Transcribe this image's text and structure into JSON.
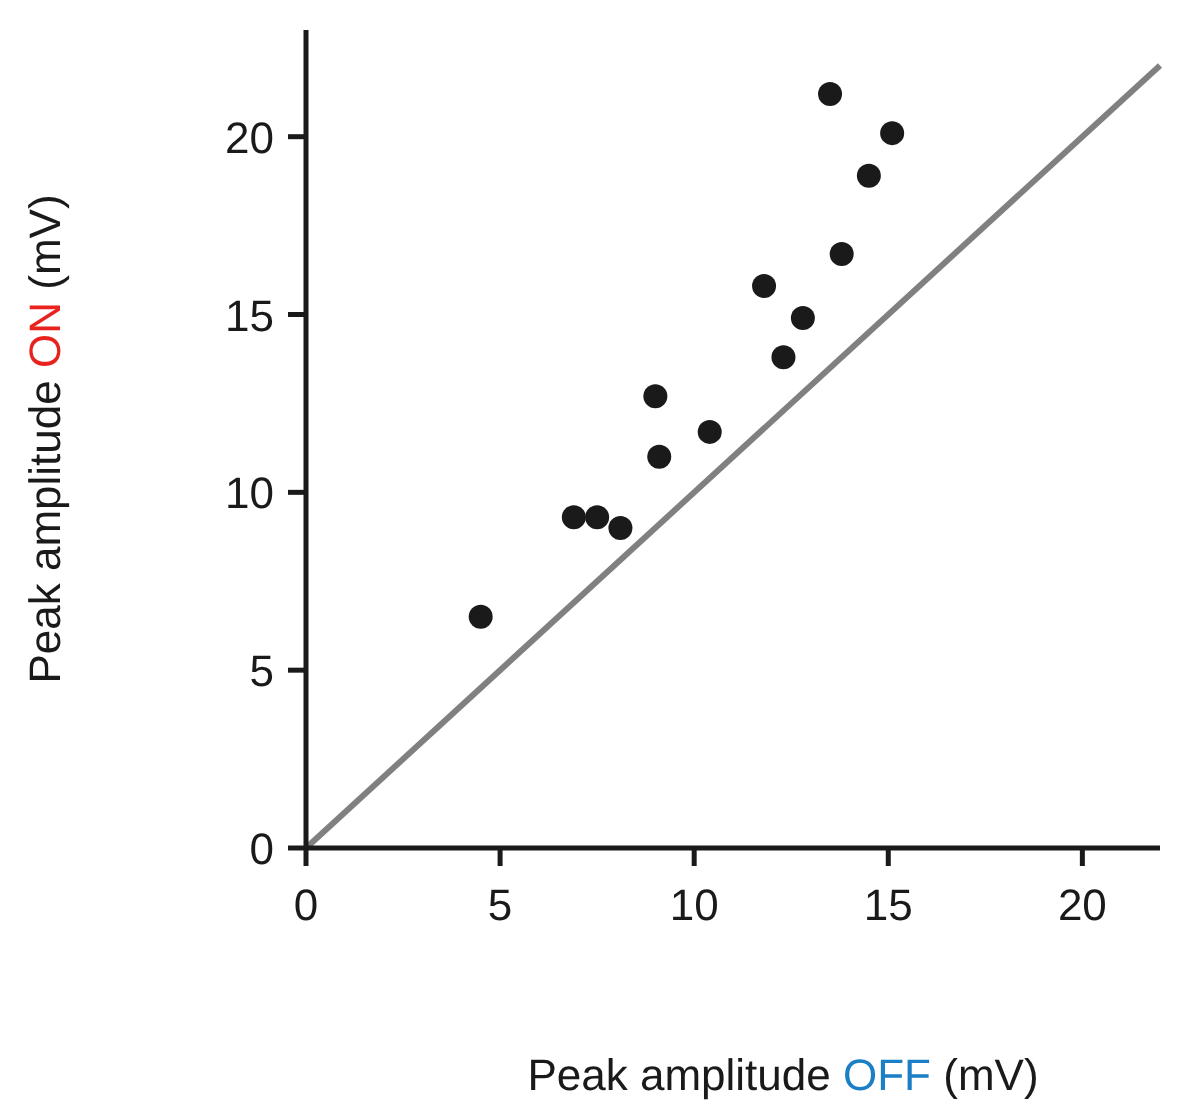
{
  "chart_data": {
    "type": "scatter",
    "xlabel": "Peak amplitude OFF (mV)",
    "ylabel": "Peak amplitude ON (mV)",
    "xlim": [
      0,
      22
    ],
    "ylim": [
      0,
      23
    ],
    "xticks": [
      0,
      5,
      10,
      15,
      20
    ],
    "yticks": [
      0,
      5,
      10,
      15,
      20
    ],
    "marker": "circle",
    "grid": false,
    "series": [
      {
        "type": "line",
        "marker": "none",
        "color": "#808080",
        "x": [
          0,
          22
        ],
        "values": [
          0,
          22
        ]
      },
      {
        "color": "#1a1a1a",
        "x": [
          4.5,
          6.9,
          7.5,
          8.1,
          9.0,
          9.1,
          10.4,
          11.8,
          12.3,
          12.8,
          13.5,
          13.8,
          14.5,
          15.1
        ],
        "values": [
          6.5,
          9.3,
          9.3,
          9.0,
          12.7,
          11.0,
          11.7,
          15.8,
          13.8,
          14.9,
          21.2,
          16.7,
          18.9,
          20.1
        ]
      }
    ]
  }
}
